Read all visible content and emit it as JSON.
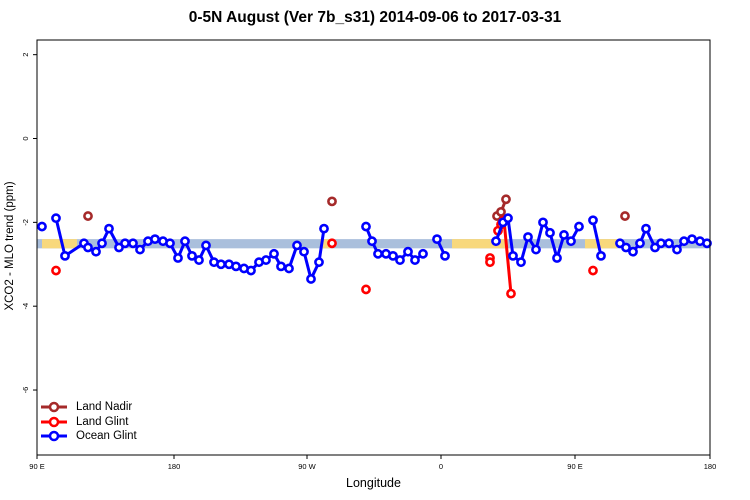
{
  "chart_data": {
    "type": "line",
    "title": "0-5N August (Ver 7b_s31)   2014-09-06 to 2017-03-31",
    "xlabel": "Longitude",
    "ylabel": "XCO2 - MLO trend (ppm)",
    "xlim": [
      0,
      673
    ],
    "ylim": [
      -7.55,
      2.35
    ],
    "xticks": [
      {
        "pos": 0,
        "label": "90 E"
      },
      {
        "pos": 137,
        "label": "180"
      },
      {
        "pos": 270,
        "label": "90 W"
      },
      {
        "pos": 404,
        "label": "0"
      },
      {
        "pos": 538,
        "label": "90 E"
      },
      {
        "pos": 673,
        "label": "180"
      }
    ],
    "yticks": [
      2,
      0,
      -2,
      -4,
      -6
    ],
    "band": {
      "y_min": -2.62,
      "y_max": -2.4,
      "color": "#aabfdc",
      "highlight_color": "#f8d87c",
      "highlight_ranges": [
        [
          5,
          40
        ],
        [
          283,
          293
        ],
        [
          415,
          470
        ],
        [
          548,
          580
        ]
      ]
    },
    "colors": {
      "land_nadir": "#a52a2a",
      "land_glint": "#ff0000",
      "ocean_glint": "#0000ff"
    },
    "legend_position": "bottom-left",
    "series": [
      {
        "name": "Land Nadir",
        "color": "#a52a2a",
        "segments": [
          [
            [
              51,
              -1.85
            ]
          ],
          [
            [
              295,
              -1.5
            ]
          ],
          [
            [
              460,
              -1.85
            ],
            [
              464,
              -1.75
            ],
            [
              469,
              -1.45
            ]
          ],
          [
            [
              588,
              -1.85
            ]
          ]
        ]
      },
      {
        "name": "Land Glint",
        "color": "#ff0000",
        "segments": [
          [
            [
              19,
              -3.15
            ]
          ],
          [
            [
              295,
              -2.5
            ]
          ],
          [
            [
              329,
              -3.6
            ]
          ],
          [
            [
              453,
              -2.85
            ],
            [
              453,
              -2.95
            ]
          ],
          [
            [
              461,
              -2.2
            ],
            [
              464,
              -2.05
            ],
            [
              467,
              -1.95
            ],
            [
              474,
              -3.7
            ]
          ],
          [
            [
              556,
              -3.15
            ]
          ]
        ]
      },
      {
        "name": "Ocean Glint",
        "color": "#0000ff",
        "segments": [
          [
            [
              5,
              -2.1
            ]
          ],
          [
            [
              19,
              -1.9
            ],
            [
              28,
              -2.8
            ],
            [
              47,
              -2.5
            ],
            [
              51,
              -2.6
            ],
            [
              59,
              -2.7
            ],
            [
              65,
              -2.5
            ],
            [
              72,
              -2.15
            ],
            [
              82,
              -2.6
            ],
            [
              88,
              -2.5
            ],
            [
              96,
              -2.5
            ],
            [
              103,
              -2.65
            ],
            [
              111,
              -2.45
            ],
            [
              118,
              -2.4
            ],
            [
              126,
              -2.45
            ],
            [
              133,
              -2.5
            ],
            [
              141,
              -2.85
            ],
            [
              148,
              -2.45
            ],
            [
              155,
              -2.8
            ],
            [
              162,
              -2.9
            ],
            [
              169,
              -2.55
            ],
            [
              177,
              -2.95
            ],
            [
              184,
              -3.0
            ],
            [
              192,
              -3.0
            ],
            [
              199,
              -3.05
            ],
            [
              207,
              -3.1
            ],
            [
              214,
              -3.15
            ],
            [
              222,
              -2.95
            ],
            [
              229,
              -2.9
            ],
            [
              237,
              -2.75
            ],
            [
              244,
              -3.05
            ],
            [
              252,
              -3.1
            ],
            [
              260,
              -2.55
            ],
            [
              267,
              -2.7
            ],
            [
              274,
              -3.35
            ],
            [
              282,
              -2.95
            ],
            [
              287,
              -2.15
            ]
          ],
          [
            [
              329,
              -2.1
            ],
            [
              335,
              -2.45
            ],
            [
              341,
              -2.75
            ],
            [
              349,
              -2.75
            ],
            [
              356,
              -2.8
            ],
            [
              363,
              -2.9
            ],
            [
              371,
              -2.7
            ],
            [
              378,
              -2.9
            ],
            [
              386,
              -2.75
            ]
          ],
          [
            [
              400,
              -2.4
            ],
            [
              408,
              -2.8
            ]
          ],
          [
            [
              459,
              -2.45
            ],
            [
              466,
              -2.0
            ],
            [
              471,
              -1.9
            ],
            [
              476,
              -2.8
            ],
            [
              484,
              -2.95
            ],
            [
              491,
              -2.35
            ],
            [
              499,
              -2.65
            ],
            [
              506,
              -2.0
            ],
            [
              513,
              -2.25
            ],
            [
              520,
              -2.85
            ],
            [
              527,
              -2.3
            ],
            [
              534,
              -2.45
            ],
            [
              542,
              -2.1
            ]
          ],
          [
            [
              556,
              -1.95
            ],
            [
              564,
              -2.8
            ]
          ],
          [
            [
              583,
              -2.5
            ],
            [
              589,
              -2.6
            ],
            [
              596,
              -2.7
            ],
            [
              603,
              -2.5
            ],
            [
              609,
              -2.15
            ],
            [
              618,
              -2.6
            ],
            [
              624,
              -2.5
            ],
            [
              632,
              -2.5
            ],
            [
              640,
              -2.65
            ],
            [
              647,
              -2.45
            ],
            [
              655,
              -2.4
            ],
            [
              663,
              -2.45
            ],
            [
              670,
              -2.5
            ]
          ]
        ]
      }
    ]
  }
}
